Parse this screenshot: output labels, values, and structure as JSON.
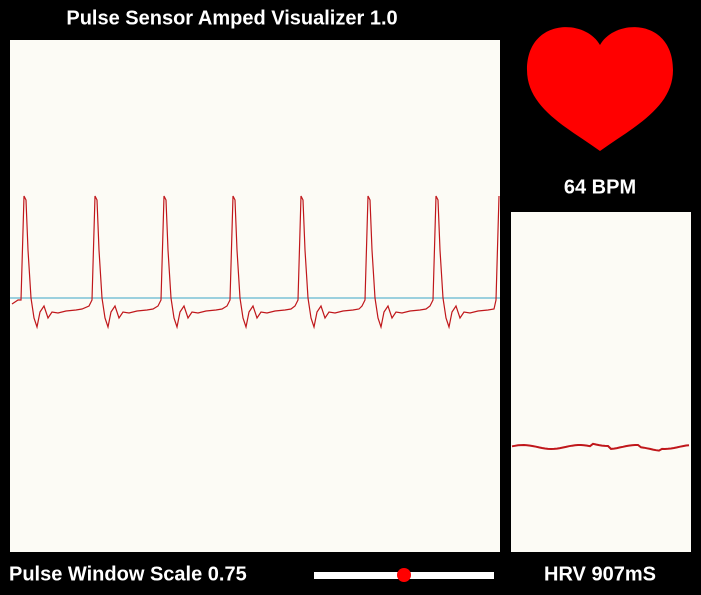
{
  "header": {
    "title": "Pulse Sensor Amped Visualizer 1.0"
  },
  "bpm_label": "64 BPM",
  "hrv_label": "HRV 907mS",
  "scale_label": "Pulse Window Scale 0.75"
}
